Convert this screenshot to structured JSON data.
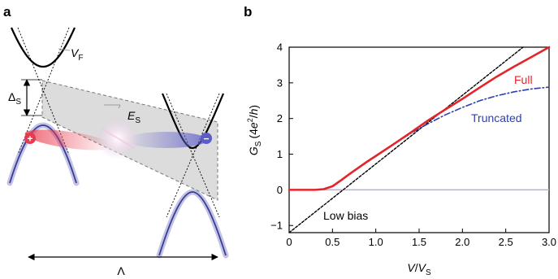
{
  "figure": {
    "panel_a": {
      "label": "a",
      "symbols": {
        "vf_main": "V",
        "vf_sub": "F",
        "delta_main": "Δ",
        "delta_sub": "S",
        "es_main": "E",
        "es_sub": "S",
        "lambda": "Λ",
        "plus": "+",
        "minus": "−"
      },
      "colors": {
        "band": "#5252b0",
        "dirac_cone": "#000000",
        "electron_blob": "#e83a4e",
        "hole_blob": "#5c5cc8",
        "gap_region": "#dcdcdc"
      }
    },
    "panel_b": {
      "label": "b"
    }
  },
  "chart_data": {
    "type": "line",
    "xlabel_main": "V",
    "xlabel_sep": "/",
    "xlabel_main2": "V",
    "xlabel_sub": "S",
    "ylabel_main": "G",
    "ylabel_sub": "S",
    "ylabel_units_pre": "(4",
    "ylabel_units_e": "e",
    "ylabel_units_sup": "2",
    "ylabel_units_post": "/",
    "ylabel_units_h": "h",
    "ylabel_units_close": ")",
    "xlim": [
      0,
      3.0
    ],
    "ylim": [
      -1.2,
      4
    ],
    "x_ticks": [
      "0",
      "0.5",
      "1.0",
      "1.5",
      "2.0",
      "2.5",
      "3.0"
    ],
    "y_ticks": [
      "−1",
      "0",
      "1",
      "2",
      "3",
      "4"
    ],
    "series": [
      {
        "name": "Full",
        "color": "#e3242b",
        "x": [
          0,
          0.3,
          0.4,
          0.5,
          0.6,
          0.7,
          0.8,
          0.9,
          1.0,
          1.2,
          1.4,
          1.6,
          1.8,
          2.0,
          2.2,
          2.4,
          2.6,
          2.8,
          3.0
        ],
        "y": [
          0,
          0,
          0.02,
          0.1,
          0.27,
          0.45,
          0.62,
          0.79,
          0.95,
          1.27,
          1.6,
          1.94,
          2.25,
          2.55,
          2.87,
          3.18,
          3.46,
          3.73,
          4.0
        ]
      },
      {
        "name": "Truncated",
        "color": "#2e3fb0",
        "x": [
          0,
          0.3,
          0.4,
          0.5,
          0.6,
          0.7,
          0.8,
          0.9,
          1.0,
          1.2,
          1.4,
          1.6,
          1.8,
          2.0,
          2.2,
          2.4,
          2.6,
          2.8,
          3.0
        ],
        "y": [
          0,
          0,
          0.02,
          0.1,
          0.27,
          0.45,
          0.62,
          0.79,
          0.95,
          1.27,
          1.58,
          1.85,
          2.1,
          2.31,
          2.5,
          2.64,
          2.75,
          2.83,
          2.88
        ]
      },
      {
        "name": "Low bias",
        "color": "#000000",
        "x": [
          0,
          2.7
        ],
        "y": [
          -1.2,
          4.0
        ]
      }
    ],
    "baseline": {
      "y": 0,
      "color": "#c3a8e0"
    }
  }
}
